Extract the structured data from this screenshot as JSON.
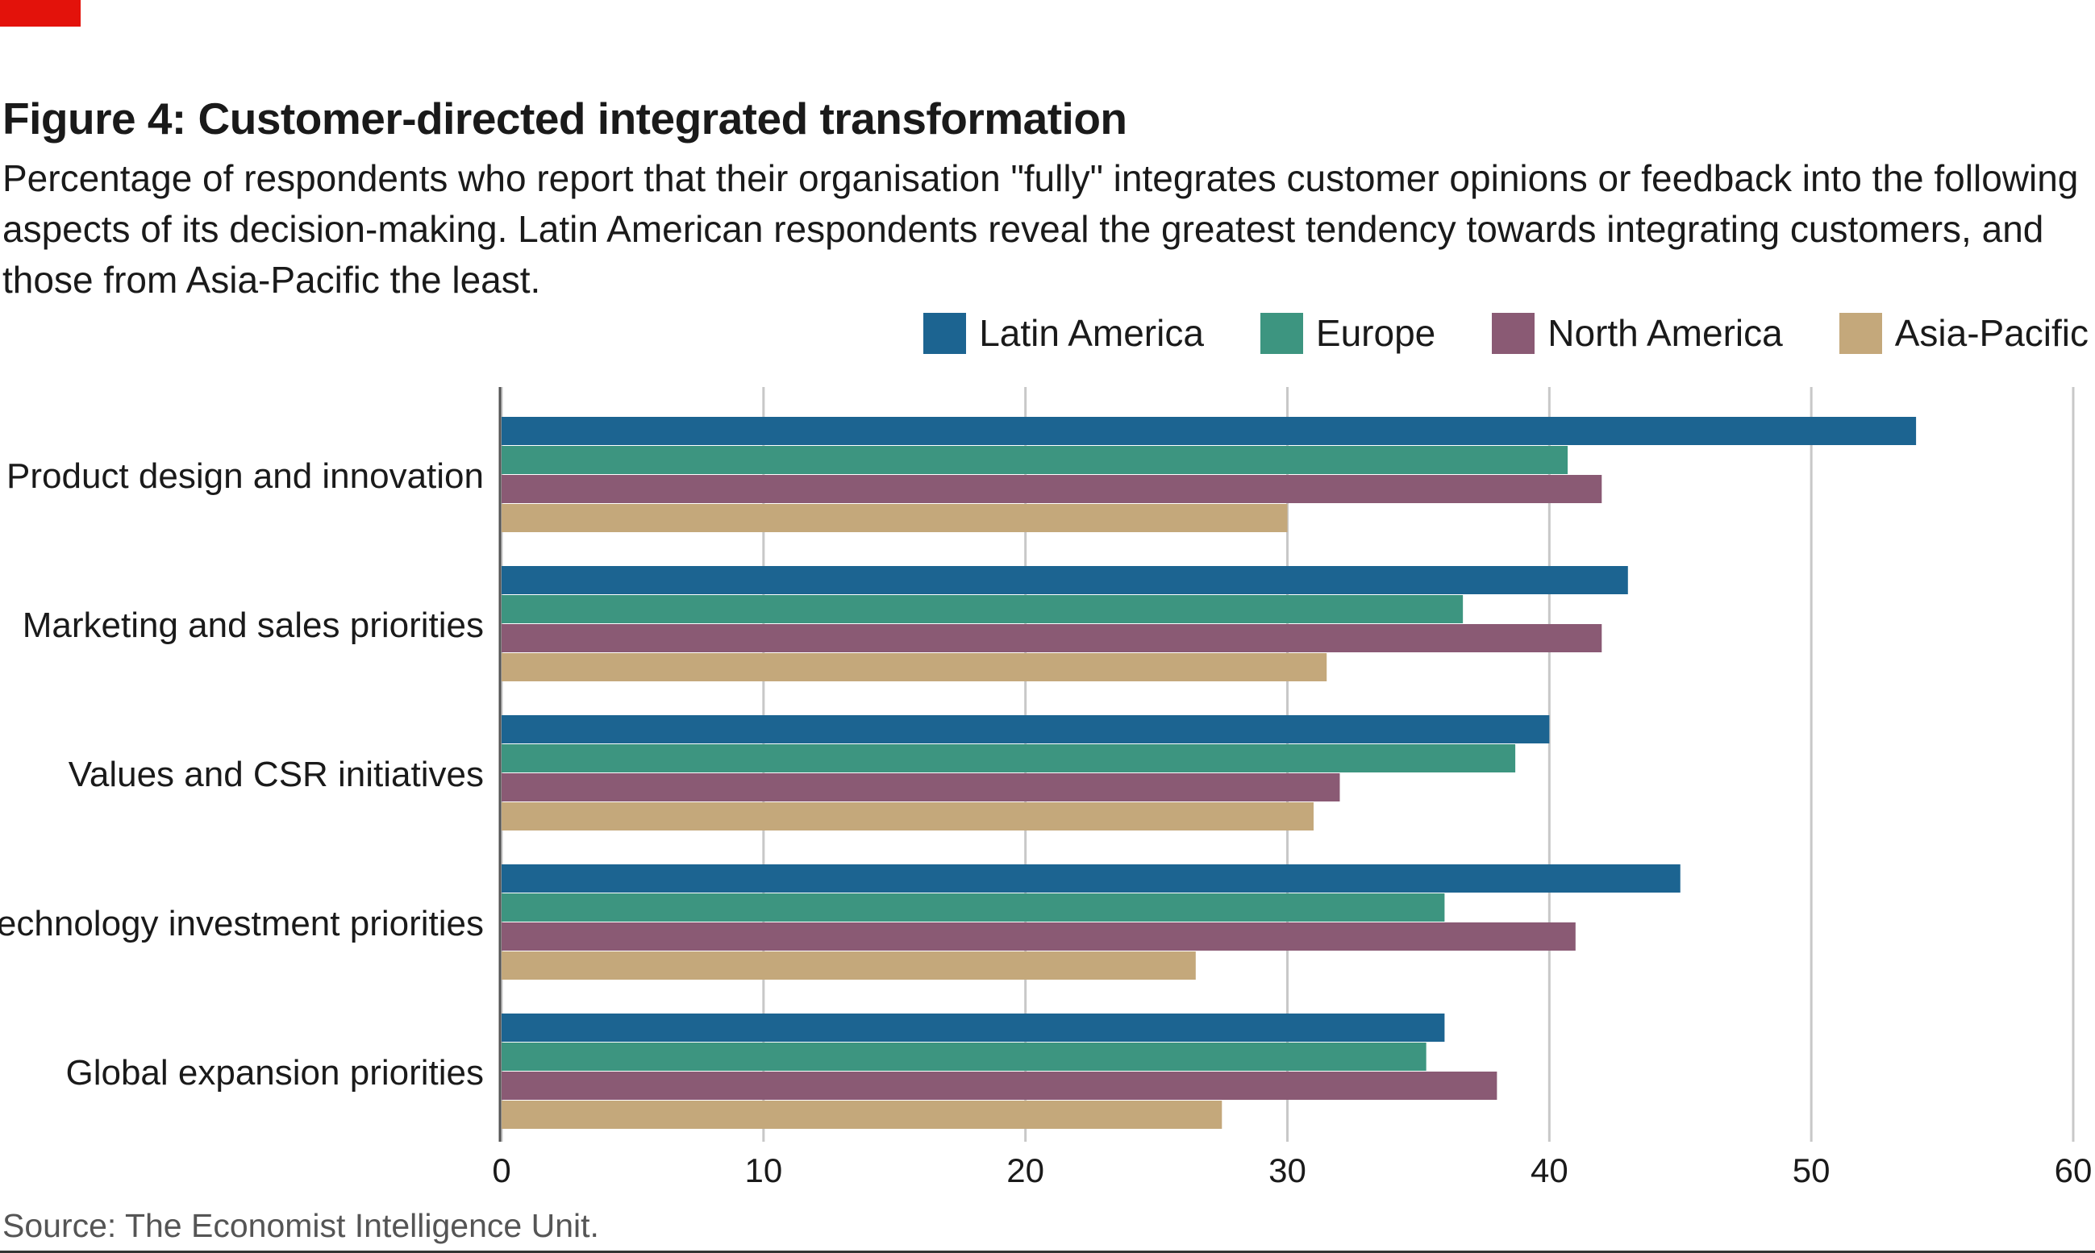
{
  "header": {
    "title": "Figure 4: Customer-directed integrated transformation",
    "subtitle": "Percentage of respondents who report that their organisation \"fully\" integrates customer opinions or feedback into the following aspects of its decision-making. Latin American respondents reveal the greatest tendency towards integrating customers, and those from Asia-Pacific the least."
  },
  "footer": {
    "source": "Source: The Economist Intelligence Unit."
  },
  "colors": {
    "accent": "#e3120b",
    "Latin America": "#1c6491",
    "Europe": "#3d9580",
    "North America": "#8a5a74",
    "Asia-Pacific": "#c4a87b",
    "grid": "#c8c8c8"
  },
  "chart_data": {
    "type": "bar",
    "orientation": "horizontal",
    "title": "Figure 4: Customer-directed integrated transformation",
    "categories": [
      "Product design and innovation",
      "Marketing and sales priorities",
      "Values and CSR initiatives",
      "Technology investment priorities",
      "Global expansion priorities"
    ],
    "series": [
      {
        "name": "Latin America",
        "values": [
          54,
          43,
          40,
          45,
          36
        ]
      },
      {
        "name": "Europe",
        "values": [
          40.7,
          36.7,
          38.7,
          36,
          35.3
        ]
      },
      {
        "name": "North America",
        "values": [
          42,
          42,
          32,
          41,
          38
        ]
      },
      {
        "name": "Asia-Pacific",
        "values": [
          30,
          31.5,
          31,
          26.5,
          27.5
        ]
      }
    ],
    "xlim": [
      0,
      60
    ],
    "xticks": [
      0,
      10,
      20,
      30,
      40,
      50,
      60
    ],
    "grid": true,
    "legend_position": "top-right"
  }
}
